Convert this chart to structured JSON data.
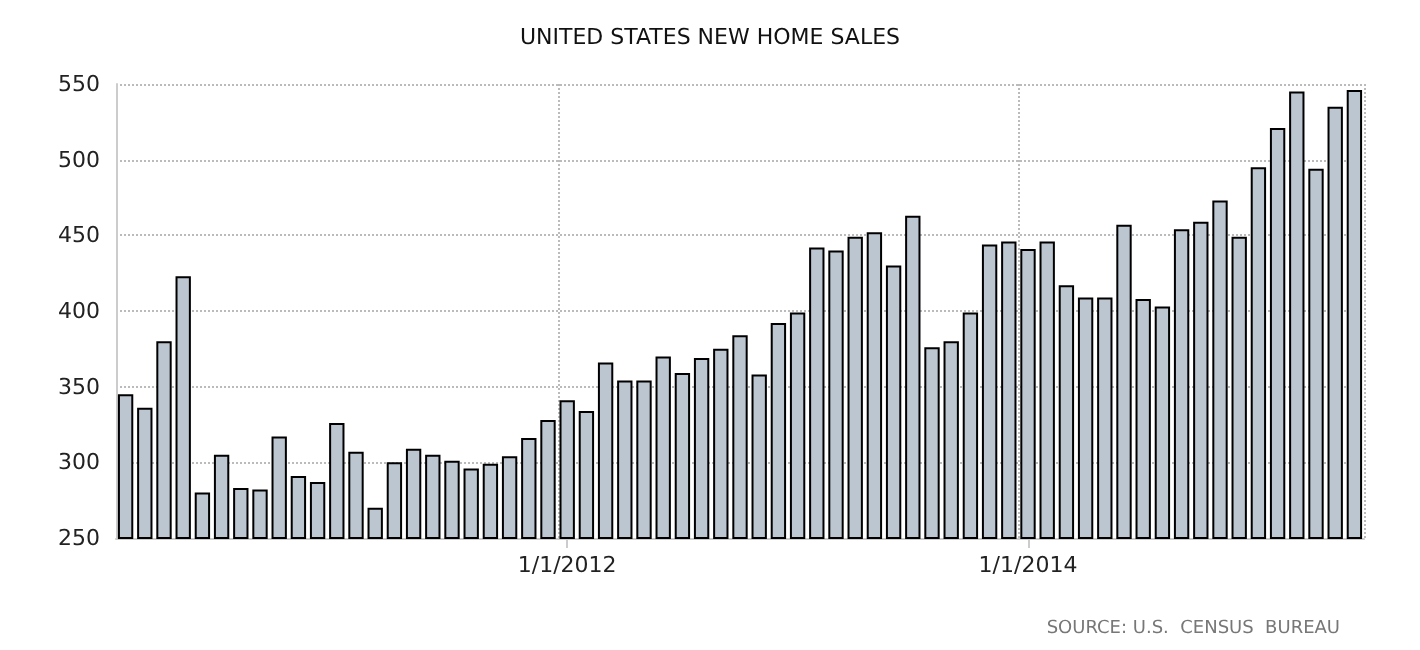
{
  "chart_data": {
    "type": "bar",
    "title": "UNITED STATES NEW HOME SALES",
    "categories": [
      null,
      null,
      null,
      null,
      null,
      null,
      null,
      null,
      null,
      null,
      null,
      null,
      null,
      null,
      null,
      null,
      null,
      null,
      null,
      null,
      null,
      null,
      null,
      "1/1/2012",
      null,
      null,
      null,
      null,
      null,
      null,
      null,
      null,
      null,
      null,
      null,
      null,
      null,
      null,
      null,
      null,
      null,
      null,
      null,
      null,
      null,
      null,
      null,
      "1/1/2014",
      null,
      null,
      null,
      null,
      null,
      null,
      null,
      null,
      null,
      null,
      null,
      null,
      null,
      null,
      null,
      null,
      null
    ],
    "values": [
      345,
      336,
      380,
      423,
      280,
      305,
      283,
      282,
      317,
      291,
      287,
      326,
      307,
      270,
      300,
      309,
      305,
      301,
      296,
      299,
      304,
      316,
      328,
      341,
      334,
      366,
      354,
      354,
      370,
      359,
      369,
      375,
      384,
      358,
      392,
      399,
      442,
      440,
      449,
      452,
      430,
      463,
      376,
      380,
      399,
      444,
      446,
      441,
      446,
      417,
      409,
      409,
      457,
      408,
      403,
      454,
      459,
      473,
      449,
      495,
      521,
      545,
      494,
      535,
      546
    ],
    "color": "#bcc6d1",
    "ylim": [
      250,
      550
    ],
    "yticks": [
      250,
      300,
      350,
      400,
      450,
      500,
      550
    ],
    "grid": true,
    "annotations": [
      "SOURCE: U.S.  CENSUS  BUREAU"
    ]
  }
}
